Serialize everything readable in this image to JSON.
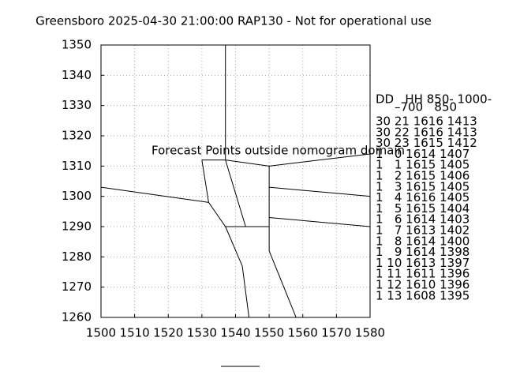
{
  "chart_data": {
    "type": "line",
    "title": "Greensboro 2025-04-30 21:00:00 RAP130 - Not for operational use",
    "annotation": "Forecast Points outside nomogram domain",
    "annotation_color": "#ff0000",
    "xlim": [
      1500,
      1580
    ],
    "xticks": [
      1500,
      1510,
      1520,
      1530,
      1540,
      1550,
      1560,
      1570,
      1580
    ],
    "ylim": [
      1260,
      1350
    ],
    "yticks": [
      1260,
      1270,
      1280,
      1290,
      1300,
      1310,
      1320,
      1330,
      1340,
      1350
    ],
    "grid": true,
    "color": "#000000",
    "segments": [
      {
        "x": [
          1537,
          1537
        ],
        "y": [
          1350,
          1312
        ]
      },
      {
        "x": [
          1530,
          1537,
          1550,
          1580
        ],
        "y": [
          1312,
          1312,
          1310,
          1314
        ]
      },
      {
        "x": [
          1530,
          1532
        ],
        "y": [
          1312,
          1298
        ]
      },
      {
        "x": [
          1500,
          1532,
          1537
        ],
        "y": [
          1303,
          1298,
          1290
        ]
      },
      {
        "x": [
          1537,
          1543
        ],
        "y": [
          1312,
          1290
        ]
      },
      {
        "x": [
          1537,
          1550
        ],
        "y": [
          1290,
          1290
        ]
      },
      {
        "x": [
          1550,
          1550
        ],
        "y": [
          1310,
          1282
        ]
      },
      {
        "x": [
          1550,
          1580
        ],
        "y": [
          1303,
          1300
        ]
      },
      {
        "x": [
          1550,
          1580
        ],
        "y": [
          1293,
          1290
        ]
      },
      {
        "x": [
          1550,
          1558
        ],
        "y": [
          1282,
          1260
        ]
      },
      {
        "x": [
          1537,
          1542,
          1544
        ],
        "y": [
          1290,
          1277,
          1260
        ]
      }
    ],
    "table": {
      "header": [
        "DD   HH 850- 1000-",
        "–700   850"
      ],
      "rows": [
        "30 21 1616 1413",
        "30 22 1616 1413",
        "30 23 1615 1412",
        "1   0 1614 1407",
        "1   1 1615 1405",
        "1   2 1615 1406",
        "1   3 1615 1405",
        "1   4 1616 1405",
        "1   5 1615 1404",
        "1   6 1614 1403",
        "1   7 1613 1402",
        "1   8 1614 1400",
        "1   9 1614 1398",
        "1 10 1613 1397",
        "1 11 1611 1396",
        "1 12 1610 1396",
        "1 13 1608 1395"
      ]
    }
  }
}
